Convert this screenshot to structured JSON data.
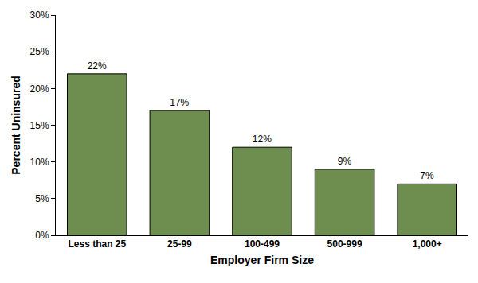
{
  "chart_data": {
    "type": "bar",
    "x_label": "Employer Firm Size",
    "y_label": "Percent Uninsured",
    "categories": [
      "Less than 25",
      "25-99",
      "100-499",
      "500-999",
      "1,000+"
    ],
    "values": [
      22,
      17,
      12,
      9,
      7
    ],
    "value_labels": [
      "22%",
      "17%",
      "12%",
      "9%",
      "7%"
    ],
    "color": "#6e8e4f",
    "ylim": [
      0,
      30
    ],
    "yticks": [
      {
        "value": 0,
        "label": "0%"
      },
      {
        "value": 5,
        "label": "5%"
      },
      {
        "value": 10,
        "label": "10%"
      },
      {
        "value": 15,
        "label": "15%"
      },
      {
        "value": 20,
        "label": "20%"
      },
      {
        "value": 25,
        "label": "25%"
      },
      {
        "value": 30,
        "label": "30%"
      }
    ],
    "grid": false,
    "data_labels": true
  }
}
